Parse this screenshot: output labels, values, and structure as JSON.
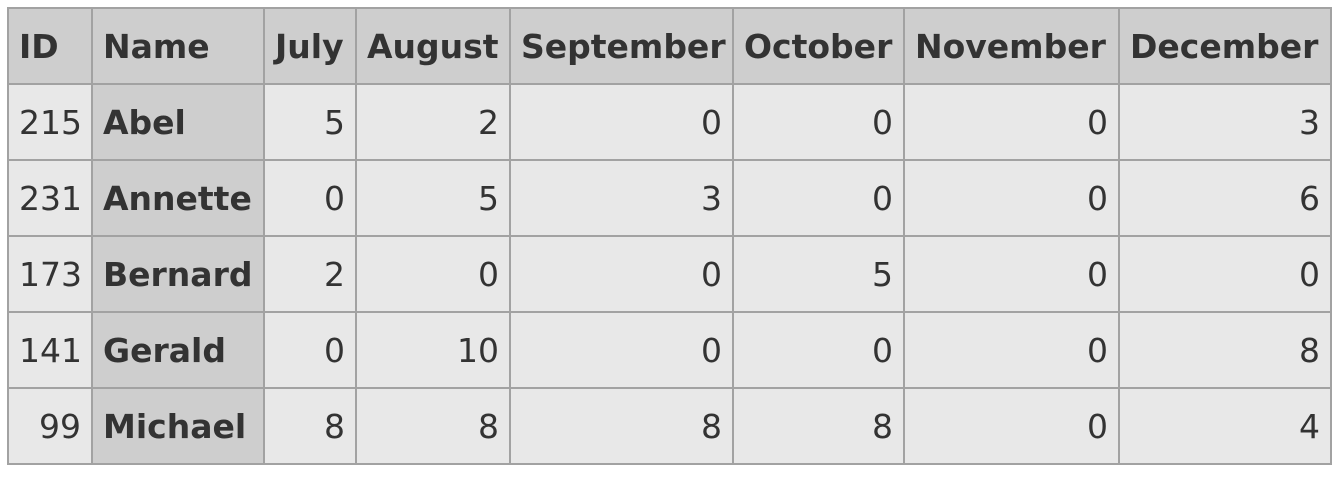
{
  "table": {
    "headers": [
      "ID",
      "Name",
      "July",
      "August",
      "September",
      "October",
      "November",
      "December"
    ],
    "rows": [
      {
        "id": "215",
        "name": "Abel",
        "july": "5",
        "august": "2",
        "september": "0",
        "october": "0",
        "november": "0",
        "december": "3"
      },
      {
        "id": "231",
        "name": "Annette",
        "july": "0",
        "august": "5",
        "september": "3",
        "october": "0",
        "november": "0",
        "december": "6"
      },
      {
        "id": "173",
        "name": "Bernard",
        "july": "2",
        "august": "0",
        "september": "0",
        "october": "5",
        "november": "0",
        "december": "0"
      },
      {
        "id": "141",
        "name": "Gerald",
        "july": "0",
        "august": "10",
        "september": "0",
        "october": "0",
        "november": "0",
        "december": "8"
      },
      {
        "id": "99",
        "name": "Michael",
        "july": "8",
        "august": "8",
        "september": "8",
        "october": "8",
        "november": "0",
        "december": "4"
      }
    ]
  },
  "colors": {
    "header_bg": "#cecece",
    "cell_bg": "#e8e8e8",
    "border": "#a2a2a2",
    "text": "#333333"
  }
}
